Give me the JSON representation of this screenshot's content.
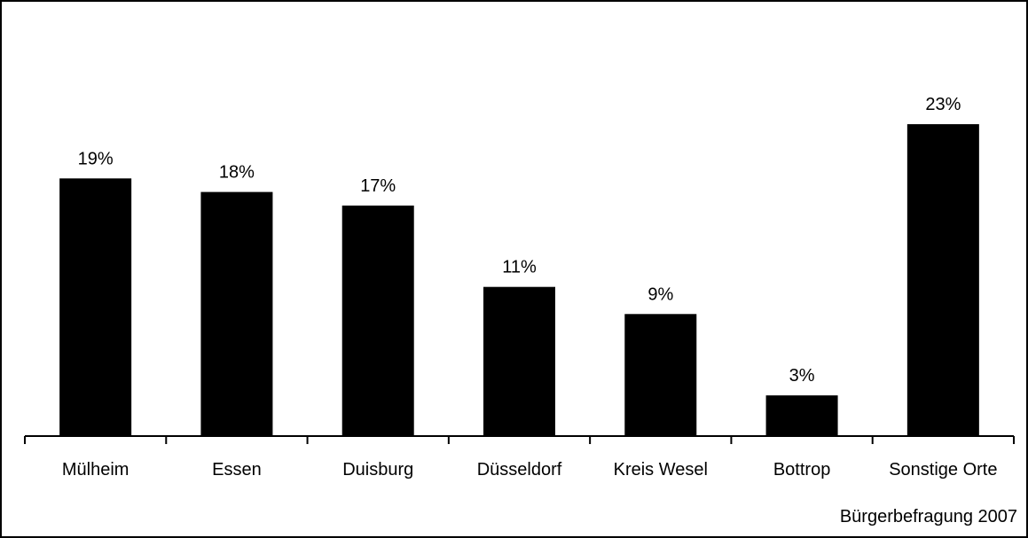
{
  "chart_data": {
    "type": "bar",
    "title": "",
    "xlabel": "",
    "ylabel": "",
    "categories": [
      "Mülheim",
      "Essen",
      "Duisburg",
      "Düsseldorf",
      "Kreis Wesel",
      "Bottrop",
      "Sonstige Orte"
    ],
    "values": [
      19,
      18,
      17,
      11,
      9,
      3,
      23
    ],
    "data_labels": [
      "19%",
      "18%",
      "17%",
      "11%",
      "9%",
      "3%",
      "23%"
    ],
    "ylim": [
      0,
      25
    ],
    "grid": false,
    "bar_color": "#000000"
  },
  "source_note": "Bürgerbefragung 2007"
}
